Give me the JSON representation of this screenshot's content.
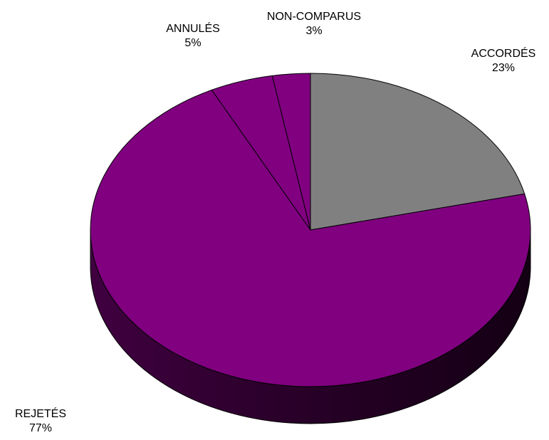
{
  "chart_data": {
    "type": "pie",
    "title": "",
    "slices": [
      {
        "label": "ACCORDÉS",
        "value": 23,
        "value_label": "23%",
        "color": "#808080"
      },
      {
        "label": "REJETÉS",
        "value": 77,
        "value_label": "77%",
        "color": "#800080"
      },
      {
        "label": "ANNULÉS",
        "value": 5,
        "value_label": "5%",
        "color": "#800080"
      },
      {
        "label": "NON-COMPARUS",
        "value": 3,
        "value_label": "3%",
        "color": "#800080"
      }
    ],
    "style": "3d",
    "legend": "none",
    "outline_color": "#000000"
  }
}
